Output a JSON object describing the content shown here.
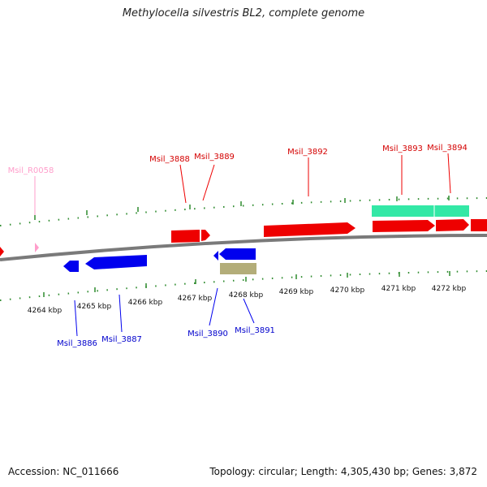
{
  "title": "Methylocella silvestris BL2, complete genome",
  "footer": {
    "accession": "Accession: NC_011666",
    "summary": "Topology: circular; Length: 4,305,430 bp; Genes: 3,872"
  },
  "colors": {
    "forward_gene": "#ee0000",
    "reverse_gene": "#0000ee",
    "rna": "#ff9ecb",
    "forward_feature": "#33e8a6",
    "reverse_feature": "#b3ad79",
    "ticks": "#2e8b2e",
    "backbone": "#7a7a7a"
  },
  "scale_labels": [
    "4264 kbp",
    "4265 kbp",
    "4266 kbp",
    "4267 kbp",
    "4268 kbp",
    "4269 kbp",
    "4270 kbp",
    "4271 kbp",
    "4272 kbp"
  ],
  "forward_labels": [
    "Msil_R0058",
    "Msil_3888",
    "Msil_3889",
    "Msil_3892",
    "Msil_3893",
    "Msil_3894"
  ],
  "reverse_labels": [
    "Msil_3886",
    "Msil_3887",
    "Msil_3890",
    "Msil_3891"
  ]
}
